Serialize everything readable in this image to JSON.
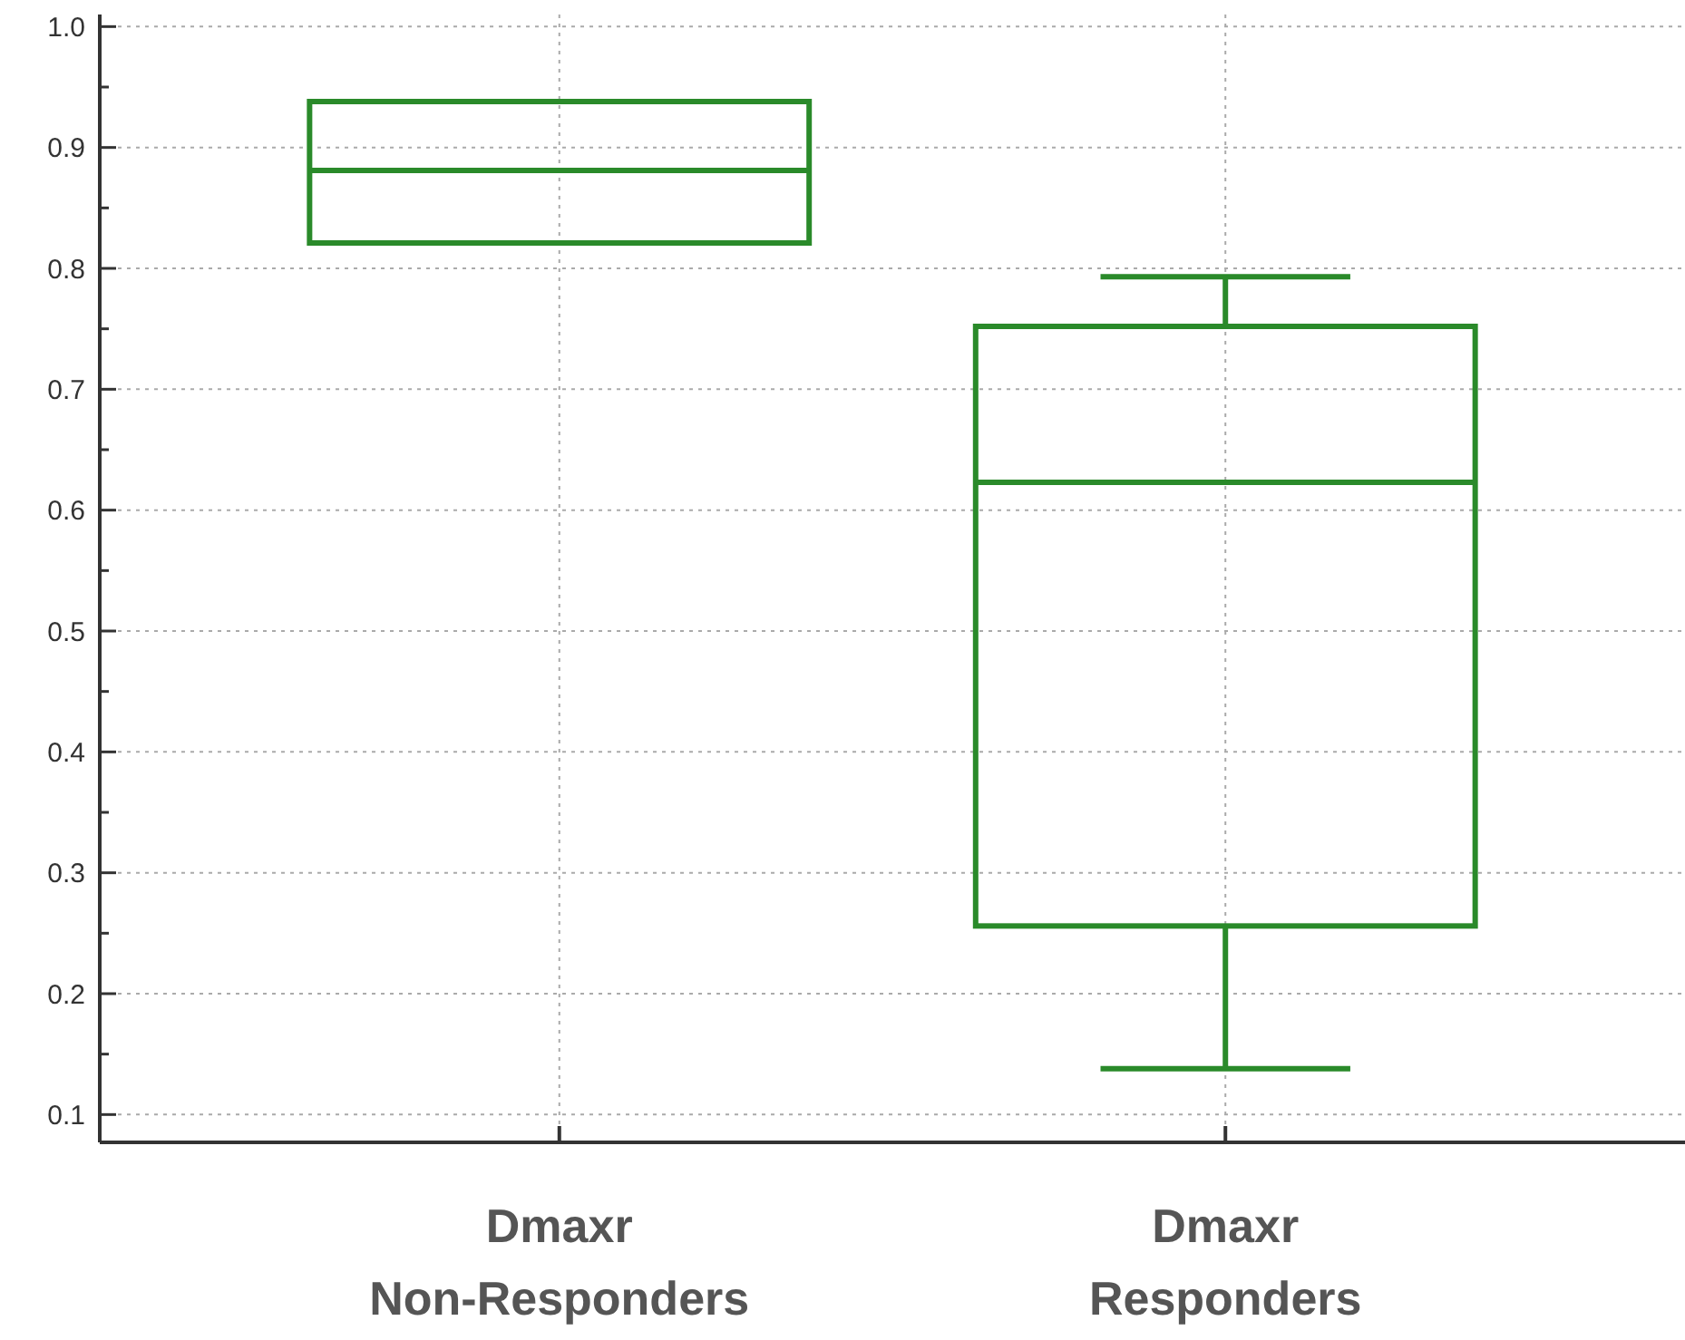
{
  "chart_data": {
    "type": "box",
    "categories": [
      "Dmaxr\nNon-Responders",
      "Dmaxr\nResponders"
    ],
    "color": "#2a8a2a",
    "boxes": [
      {
        "low": 0.821,
        "q1": 0.821,
        "median": 0.881,
        "q3": 0.938,
        "high": 0.938
      },
      {
        "low": 0.138,
        "q1": 0.256,
        "median": 0.623,
        "q3": 0.752,
        "high": 0.793
      }
    ],
    "ylim": [
      0.077,
      1.01
    ],
    "yticks": [
      0.1,
      {
        "value": 0.15,
        "label": null
      },
      0.2,
      {
        "value": 0.25,
        "label": null
      },
      0.3,
      {
        "value": 0.35,
        "label": null
      },
      0.4,
      {
        "value": 0.45,
        "label": null
      },
      0.5,
      {
        "value": 0.55,
        "label": null
      },
      0.6,
      {
        "value": 0.65,
        "label": null
      },
      0.7,
      {
        "value": 0.75,
        "label": null
      },
      0.8,
      {
        "value": 0.85,
        "label": null
      },
      0.9,
      {
        "value": 0.95,
        "label": null
      },
      {
        "value": 1.0,
        "label": "1.0"
      }
    ],
    "grid": true
  }
}
